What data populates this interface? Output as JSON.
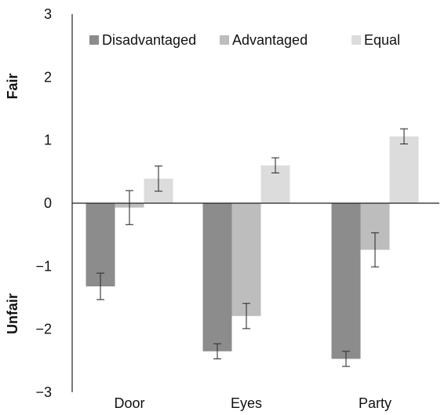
{
  "chart_data": {
    "type": "bar",
    "categories": [
      "Door",
      "Eyes",
      "Party"
    ],
    "series": [
      {
        "name": "Disadvantaged",
        "color": "#8c8c8c",
        "values": [
          -1.32,
          -2.35,
          -2.47
        ],
        "errors": [
          0.21,
          0.12,
          0.12
        ]
      },
      {
        "name": "Advantaged",
        "color": "#bdbdbd",
        "values": [
          -0.07,
          -1.79,
          -0.74
        ],
        "errors": [
          0.27,
          0.2,
          0.27
        ]
      },
      {
        "name": "Equal",
        "color": "#dcdcdc",
        "values": [
          0.39,
          0.6,
          1.06
        ],
        "errors": [
          0.2,
          0.12,
          0.12
        ]
      }
    ],
    "ylim": [
      -3,
      3
    ],
    "yticks": [
      3,
      2,
      1,
      0,
      -1,
      -2,
      -3
    ],
    "ytick_labels": [
      "3",
      "2",
      "1",
      "0",
      "−1",
      "−2",
      "−3"
    ],
    "side_labels": {
      "top": "Fair",
      "bottom": "Unfair"
    },
    "legend_position": "top",
    "grid": false
  }
}
